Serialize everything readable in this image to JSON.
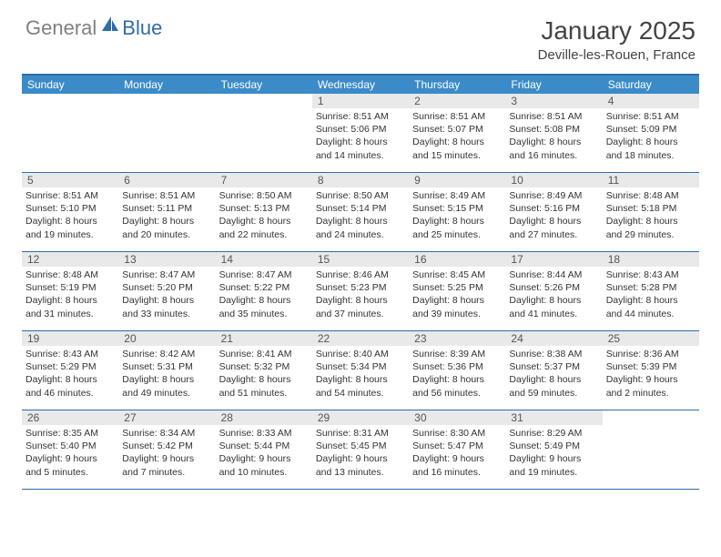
{
  "logo": {
    "text1": "General",
    "text2": "Blue"
  },
  "title": "January 2025",
  "location": "Deville-les-Rouen, France",
  "colors": {
    "header_bar": "#2f6ca8",
    "weekday_bg": "#3b8bc8",
    "daynum_bg": "#e8e9eb",
    "text_primary": "#333333",
    "text_muted": "#555555"
  },
  "weekdays": [
    "Sunday",
    "Monday",
    "Tuesday",
    "Wednesday",
    "Thursday",
    "Friday",
    "Saturday"
  ],
  "weeks": [
    [
      {
        "n": "",
        "sr": "",
        "ss": "",
        "dl": ""
      },
      {
        "n": "",
        "sr": "",
        "ss": "",
        "dl": ""
      },
      {
        "n": "",
        "sr": "",
        "ss": "",
        "dl": ""
      },
      {
        "n": "1",
        "sr": "Sunrise: 8:51 AM",
        "ss": "Sunset: 5:06 PM",
        "dl": "Daylight: 8 hours and 14 minutes."
      },
      {
        "n": "2",
        "sr": "Sunrise: 8:51 AM",
        "ss": "Sunset: 5:07 PM",
        "dl": "Daylight: 8 hours and 15 minutes."
      },
      {
        "n": "3",
        "sr": "Sunrise: 8:51 AM",
        "ss": "Sunset: 5:08 PM",
        "dl": "Daylight: 8 hours and 16 minutes."
      },
      {
        "n": "4",
        "sr": "Sunrise: 8:51 AM",
        "ss": "Sunset: 5:09 PM",
        "dl": "Daylight: 8 hours and 18 minutes."
      }
    ],
    [
      {
        "n": "5",
        "sr": "Sunrise: 8:51 AM",
        "ss": "Sunset: 5:10 PM",
        "dl": "Daylight: 8 hours and 19 minutes."
      },
      {
        "n": "6",
        "sr": "Sunrise: 8:51 AM",
        "ss": "Sunset: 5:11 PM",
        "dl": "Daylight: 8 hours and 20 minutes."
      },
      {
        "n": "7",
        "sr": "Sunrise: 8:50 AM",
        "ss": "Sunset: 5:13 PM",
        "dl": "Daylight: 8 hours and 22 minutes."
      },
      {
        "n": "8",
        "sr": "Sunrise: 8:50 AM",
        "ss": "Sunset: 5:14 PM",
        "dl": "Daylight: 8 hours and 24 minutes."
      },
      {
        "n": "9",
        "sr": "Sunrise: 8:49 AM",
        "ss": "Sunset: 5:15 PM",
        "dl": "Daylight: 8 hours and 25 minutes."
      },
      {
        "n": "10",
        "sr": "Sunrise: 8:49 AM",
        "ss": "Sunset: 5:16 PM",
        "dl": "Daylight: 8 hours and 27 minutes."
      },
      {
        "n": "11",
        "sr": "Sunrise: 8:48 AM",
        "ss": "Sunset: 5:18 PM",
        "dl": "Daylight: 8 hours and 29 minutes."
      }
    ],
    [
      {
        "n": "12",
        "sr": "Sunrise: 8:48 AM",
        "ss": "Sunset: 5:19 PM",
        "dl": "Daylight: 8 hours and 31 minutes."
      },
      {
        "n": "13",
        "sr": "Sunrise: 8:47 AM",
        "ss": "Sunset: 5:20 PM",
        "dl": "Daylight: 8 hours and 33 minutes."
      },
      {
        "n": "14",
        "sr": "Sunrise: 8:47 AM",
        "ss": "Sunset: 5:22 PM",
        "dl": "Daylight: 8 hours and 35 minutes."
      },
      {
        "n": "15",
        "sr": "Sunrise: 8:46 AM",
        "ss": "Sunset: 5:23 PM",
        "dl": "Daylight: 8 hours and 37 minutes."
      },
      {
        "n": "16",
        "sr": "Sunrise: 8:45 AM",
        "ss": "Sunset: 5:25 PM",
        "dl": "Daylight: 8 hours and 39 minutes."
      },
      {
        "n": "17",
        "sr": "Sunrise: 8:44 AM",
        "ss": "Sunset: 5:26 PM",
        "dl": "Daylight: 8 hours and 41 minutes."
      },
      {
        "n": "18",
        "sr": "Sunrise: 8:43 AM",
        "ss": "Sunset: 5:28 PM",
        "dl": "Daylight: 8 hours and 44 minutes."
      }
    ],
    [
      {
        "n": "19",
        "sr": "Sunrise: 8:43 AM",
        "ss": "Sunset: 5:29 PM",
        "dl": "Daylight: 8 hours and 46 minutes."
      },
      {
        "n": "20",
        "sr": "Sunrise: 8:42 AM",
        "ss": "Sunset: 5:31 PM",
        "dl": "Daylight: 8 hours and 49 minutes."
      },
      {
        "n": "21",
        "sr": "Sunrise: 8:41 AM",
        "ss": "Sunset: 5:32 PM",
        "dl": "Daylight: 8 hours and 51 minutes."
      },
      {
        "n": "22",
        "sr": "Sunrise: 8:40 AM",
        "ss": "Sunset: 5:34 PM",
        "dl": "Daylight: 8 hours and 54 minutes."
      },
      {
        "n": "23",
        "sr": "Sunrise: 8:39 AM",
        "ss": "Sunset: 5:36 PM",
        "dl": "Daylight: 8 hours and 56 minutes."
      },
      {
        "n": "24",
        "sr": "Sunrise: 8:38 AM",
        "ss": "Sunset: 5:37 PM",
        "dl": "Daylight: 8 hours and 59 minutes."
      },
      {
        "n": "25",
        "sr": "Sunrise: 8:36 AM",
        "ss": "Sunset: 5:39 PM",
        "dl": "Daylight: 9 hours and 2 minutes."
      }
    ],
    [
      {
        "n": "26",
        "sr": "Sunrise: 8:35 AM",
        "ss": "Sunset: 5:40 PM",
        "dl": "Daylight: 9 hours and 5 minutes."
      },
      {
        "n": "27",
        "sr": "Sunrise: 8:34 AM",
        "ss": "Sunset: 5:42 PM",
        "dl": "Daylight: 9 hours and 7 minutes."
      },
      {
        "n": "28",
        "sr": "Sunrise: 8:33 AM",
        "ss": "Sunset: 5:44 PM",
        "dl": "Daylight: 9 hours and 10 minutes."
      },
      {
        "n": "29",
        "sr": "Sunrise: 8:31 AM",
        "ss": "Sunset: 5:45 PM",
        "dl": "Daylight: 9 hours and 13 minutes."
      },
      {
        "n": "30",
        "sr": "Sunrise: 8:30 AM",
        "ss": "Sunset: 5:47 PM",
        "dl": "Daylight: 9 hours and 16 minutes."
      },
      {
        "n": "31",
        "sr": "Sunrise: 8:29 AM",
        "ss": "Sunset: 5:49 PM",
        "dl": "Daylight: 9 hours and 19 minutes."
      },
      {
        "n": "",
        "sr": "",
        "ss": "",
        "dl": ""
      }
    ]
  ]
}
